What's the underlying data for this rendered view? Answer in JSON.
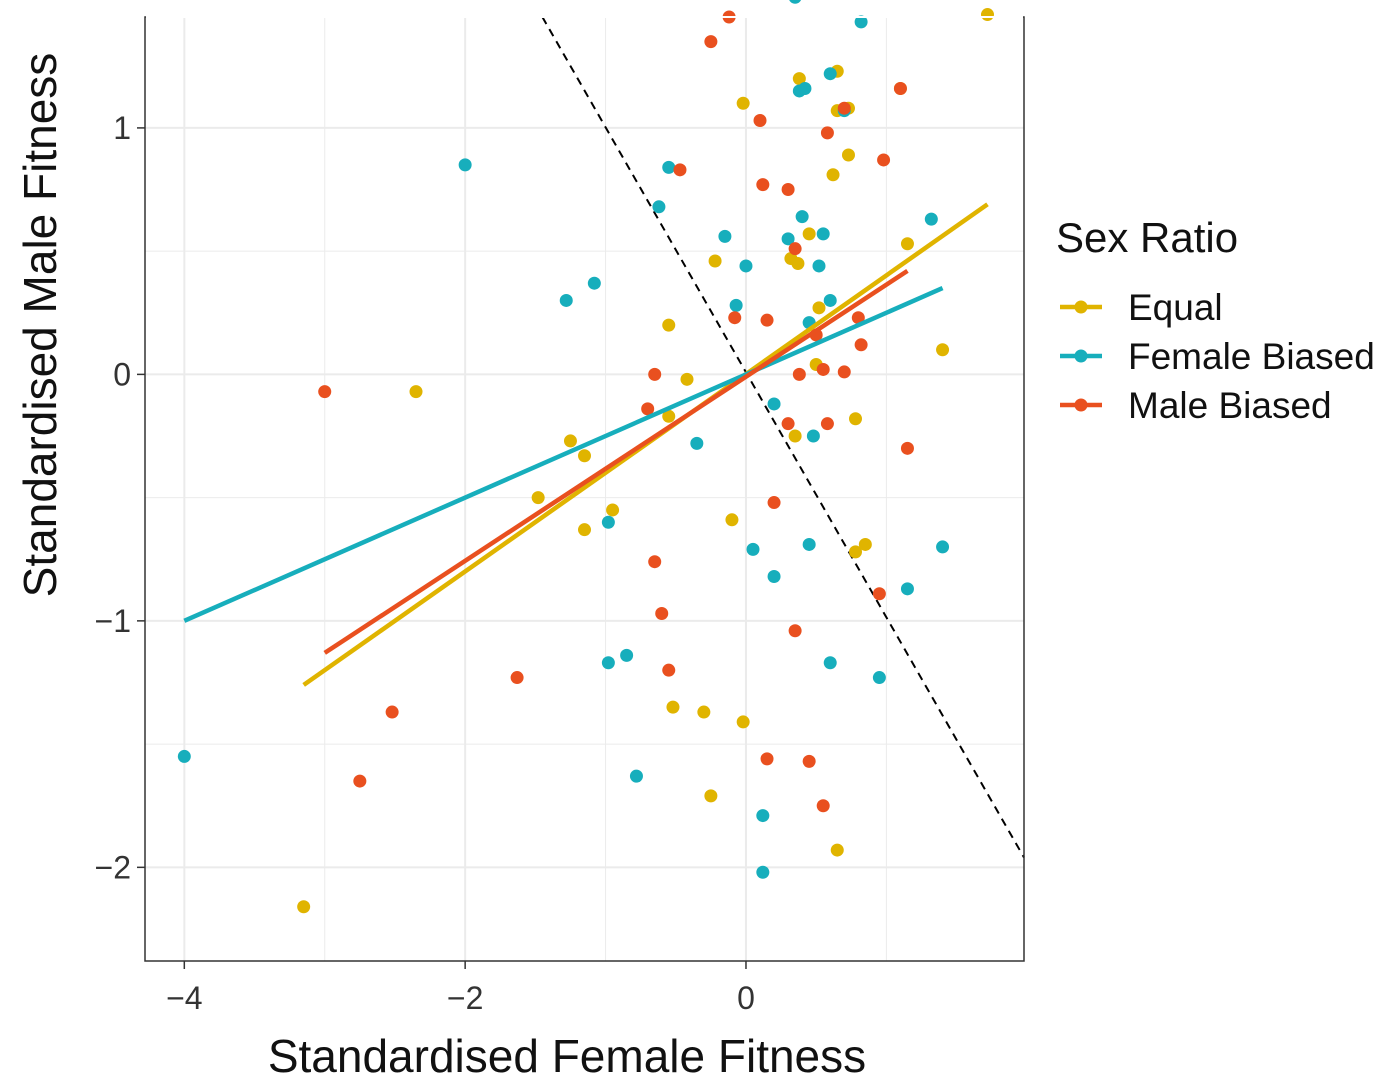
{
  "chart_data": {
    "type": "scatter",
    "xlabel": "Standardised Female Fitness",
    "ylabel": "Standardised Male Fitness",
    "xlim": [
      -4.28,
      1.98
    ],
    "ylim": [
      -2.38,
      1.45
    ],
    "x_ticks": [
      -4,
      -2,
      0
    ],
    "x_tick_labels": [
      "−4",
      "−2",
      "0"
    ],
    "y_ticks": [
      -2,
      -1,
      0,
      1
    ],
    "y_tick_labels": [
      "−2",
      "−1",
      "0",
      "1"
    ],
    "grid": true,
    "legend": {
      "title": "Sex Ratio",
      "position": "right"
    },
    "reference_line": {
      "style": "dashed",
      "color": "#000000",
      "x": [
        -1.45,
        1.98
      ],
      "y": [
        1.45,
        -1.96
      ]
    },
    "series": [
      {
        "name": "Equal",
        "color": "#E0B400",
        "points": [
          [
            -3.15,
            -2.16
          ],
          [
            -2.35,
            -0.07
          ],
          [
            -1.48,
            -0.5
          ],
          [
            -1.25,
            -0.27
          ],
          [
            -1.15,
            -0.33
          ],
          [
            -1.15,
            -0.63
          ],
          [
            -0.95,
            -0.55
          ],
          [
            -0.55,
            0.2
          ],
          [
            -0.55,
            -0.17
          ],
          [
            -0.52,
            -1.35
          ],
          [
            -0.42,
            -0.02
          ],
          [
            -0.3,
            -1.37
          ],
          [
            -0.25,
            -1.71
          ],
          [
            -0.22,
            0.46
          ],
          [
            -0.1,
            -0.59
          ],
          [
            -0.02,
            -1.41
          ],
          [
            -0.02,
            1.1
          ],
          [
            0.32,
            0.47
          ],
          [
            0.35,
            -0.25
          ],
          [
            0.37,
            0.45
          ],
          [
            0.38,
            1.2
          ],
          [
            0.45,
            0.57
          ],
          [
            0.5,
            0.04
          ],
          [
            0.52,
            0.27
          ],
          [
            0.62,
            0.81
          ],
          [
            0.65,
            -1.93
          ],
          [
            0.65,
            1.23
          ],
          [
            0.65,
            1.07
          ],
          [
            0.73,
            1.08
          ],
          [
            0.73,
            0.89
          ],
          [
            0.78,
            -0.18
          ],
          [
            0.78,
            -0.72
          ],
          [
            0.85,
            -0.69
          ],
          [
            1.1,
            1.16
          ],
          [
            1.15,
            0.53
          ],
          [
            1.4,
            0.1
          ],
          [
            1.72,
            1.46
          ]
        ],
        "fit": [
          [
            -3.15,
            -1.26
          ],
          [
            1.72,
            0.69
          ]
        ]
      },
      {
        "name": "Female Biased",
        "color": "#17AEBC",
        "points": [
          [
            -4.0,
            -1.55
          ],
          [
            -2.0,
            0.85
          ],
          [
            -1.28,
            0.3
          ],
          [
            -1.08,
            0.37
          ],
          [
            -0.98,
            -1.17
          ],
          [
            -0.98,
            -0.6
          ],
          [
            -0.85,
            -1.14
          ],
          [
            -0.78,
            -1.63
          ],
          [
            -0.62,
            0.68
          ],
          [
            -0.55,
            0.84
          ],
          [
            -0.35,
            -0.28
          ],
          [
            -0.15,
            0.56
          ],
          [
            -0.07,
            0.28
          ],
          [
            0.0,
            0.44
          ],
          [
            0.05,
            -0.71
          ],
          [
            0.12,
            -2.02
          ],
          [
            0.12,
            -1.79
          ],
          [
            0.2,
            -0.12
          ],
          [
            0.2,
            -0.82
          ],
          [
            0.3,
            0.55
          ],
          [
            0.35,
            1.53
          ],
          [
            0.38,
            1.15
          ],
          [
            0.4,
            0.64
          ],
          [
            0.42,
            1.16
          ],
          [
            0.45,
            0.21
          ],
          [
            0.45,
            -0.69
          ],
          [
            0.48,
            -0.25
          ],
          [
            0.52,
            0.44
          ],
          [
            0.55,
            0.57
          ],
          [
            0.6,
            1.22
          ],
          [
            0.6,
            -1.17
          ],
          [
            0.6,
            0.3
          ],
          [
            0.7,
            1.07
          ],
          [
            0.82,
            1.43
          ],
          [
            0.95,
            -1.23
          ],
          [
            1.15,
            -0.87
          ],
          [
            1.32,
            0.63
          ],
          [
            1.4,
            -0.7
          ]
        ],
        "fit": [
          [
            -4.0,
            -1.0
          ],
          [
            1.4,
            0.35
          ]
        ]
      },
      {
        "name": "Male Biased",
        "color": "#E9501F",
        "points": [
          [
            -3.0,
            -0.07
          ],
          [
            -2.75,
            -1.65
          ],
          [
            -2.52,
            -1.37
          ],
          [
            -1.63,
            -1.23
          ],
          [
            -0.7,
            -0.14
          ],
          [
            -0.65,
            0.0
          ],
          [
            -0.65,
            -0.76
          ],
          [
            -0.6,
            -0.97
          ],
          [
            -0.55,
            -1.2
          ],
          [
            -0.47,
            0.83
          ],
          [
            -0.25,
            1.35
          ],
          [
            -0.12,
            1.45
          ],
          [
            -0.08,
            0.23
          ],
          [
            0.1,
            1.03
          ],
          [
            0.12,
            0.77
          ],
          [
            0.15,
            -1.56
          ],
          [
            0.15,
            0.22
          ],
          [
            0.2,
            -0.52
          ],
          [
            0.3,
            -0.2
          ],
          [
            0.3,
            0.75
          ],
          [
            0.35,
            0.51
          ],
          [
            0.35,
            -1.04
          ],
          [
            0.38,
            0.0
          ],
          [
            0.45,
            -1.57
          ],
          [
            0.5,
            0.16
          ],
          [
            0.55,
            -1.75
          ],
          [
            0.55,
            0.02
          ],
          [
            0.58,
            0.98
          ],
          [
            0.58,
            -0.2
          ],
          [
            0.7,
            1.08
          ],
          [
            0.7,
            0.01
          ],
          [
            0.8,
            0.23
          ],
          [
            0.82,
            0.12
          ],
          [
            0.95,
            -0.89
          ],
          [
            0.98,
            0.87
          ],
          [
            1.1,
            1.16
          ],
          [
            1.15,
            -0.3
          ]
        ],
        "fit": [
          [
            -3.0,
            -1.13
          ],
          [
            1.15,
            0.42
          ]
        ]
      }
    ]
  }
}
